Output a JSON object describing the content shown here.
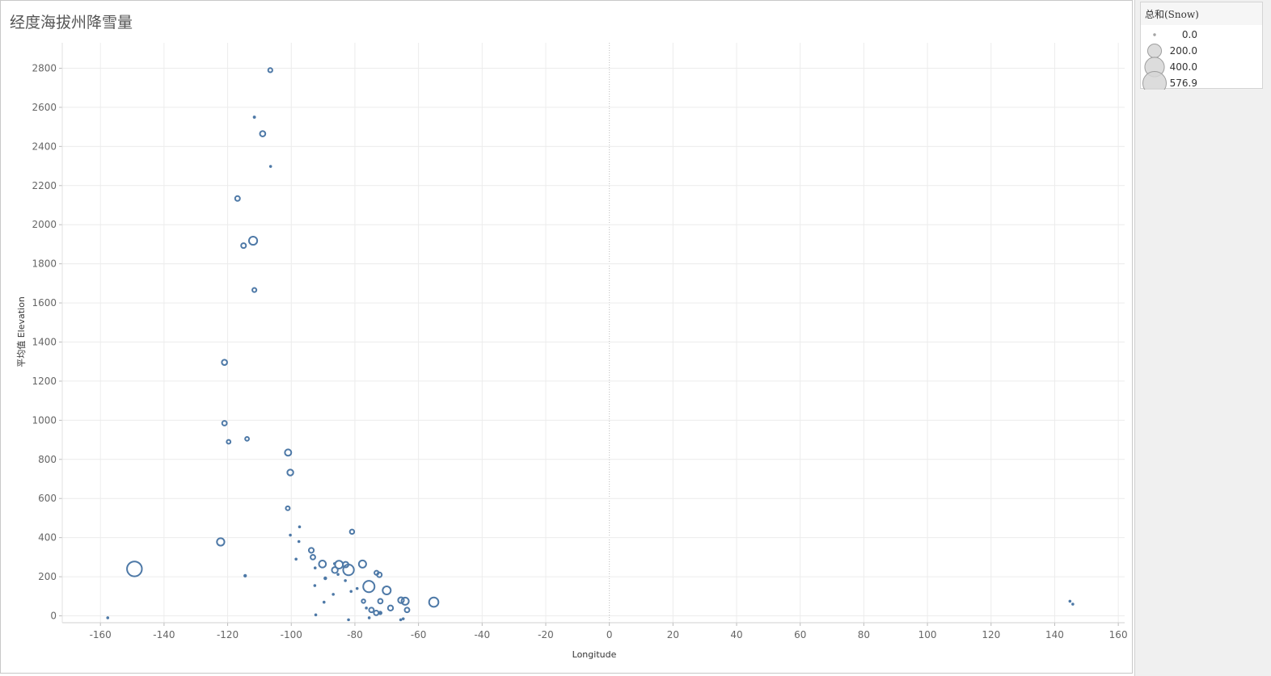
{
  "title": "经度海拔州降雪量",
  "colors": {
    "mark": "#4e79a7",
    "legend_mark": "#9e9e9e",
    "grid": "#ececec",
    "zero_line": "#bdbdbd"
  },
  "legend": {
    "title": "总和(Snow)",
    "items": [
      {
        "label": "0.0",
        "value": 0
      },
      {
        "label": "200.0",
        "value": 200
      },
      {
        "label": "400.0",
        "value": 400
      },
      {
        "label": "576.9",
        "value": 576.9
      }
    ]
  },
  "chart_data": {
    "type": "scatter",
    "xlabel": "Longitude",
    "ylabel": "平均值 Elevation",
    "xlim": [
      -172,
      162
    ],
    "ylim": [
      -35,
      2930
    ],
    "xticks": [
      -160,
      -140,
      -120,
      -100,
      -80,
      -60,
      -40,
      -20,
      0,
      20,
      40,
      60,
      80,
      100,
      120,
      140,
      160
    ],
    "yticks": [
      0,
      200,
      400,
      600,
      800,
      1000,
      1200,
      1400,
      1600,
      1800,
      2000,
      2200,
      2400,
      2600,
      2800
    ],
    "grid": true,
    "legend_position": "right",
    "size_field": "总和(Snow)",
    "size_max": 576.9,
    "points": [
      {
        "x": -106.6,
        "y": 2790,
        "size": 20
      },
      {
        "x": -111.6,
        "y": 2550,
        "size": 7
      },
      {
        "x": -109.0,
        "y": 2465,
        "size": 33
      },
      {
        "x": -106.5,
        "y": 2298,
        "size": 4
      },
      {
        "x": -116.9,
        "y": 2134,
        "size": 26
      },
      {
        "x": -112.0,
        "y": 1918,
        "size": 76
      },
      {
        "x": -115.0,
        "y": 1893,
        "size": 27
      },
      {
        "x": -111.6,
        "y": 1666,
        "size": 19
      },
      {
        "x": -121.0,
        "y": 1296,
        "size": 32
      },
      {
        "x": -121.0,
        "y": 985,
        "size": 25
      },
      {
        "x": -119.7,
        "y": 890,
        "size": 17
      },
      {
        "x": -113.9,
        "y": 905,
        "size": 17
      },
      {
        "x": -101.0,
        "y": 835,
        "size": 46
      },
      {
        "x": -100.3,
        "y": 733,
        "size": 40
      },
      {
        "x": -101.1,
        "y": 550,
        "size": 18
      },
      {
        "x": -122.2,
        "y": 378,
        "size": 63
      },
      {
        "x": -149.3,
        "y": 240,
        "size": 250
      },
      {
        "x": -157.7,
        "y": -10,
        "size": 1
      },
      {
        "x": -114.5,
        "y": 205,
        "size": 9
      },
      {
        "x": -97.4,
        "y": 455,
        "size": 5
      },
      {
        "x": -100.3,
        "y": 413,
        "size": 5
      },
      {
        "x": -97.6,
        "y": 380,
        "size": 3
      },
      {
        "x": -80.9,
        "y": 430,
        "size": 22
      },
      {
        "x": -93.7,
        "y": 335,
        "size": 28
      },
      {
        "x": -93.2,
        "y": 300,
        "size": 25
      },
      {
        "x": -98.5,
        "y": 290,
        "size": 6
      },
      {
        "x": -92.5,
        "y": 245,
        "size": 2
      },
      {
        "x": -90.2,
        "y": 265,
        "size": 55
      },
      {
        "x": -89.3,
        "y": 192,
        "size": 10
      },
      {
        "x": -86.3,
        "y": 234,
        "size": 40
      },
      {
        "x": -85.0,
        "y": 262,
        "size": 70
      },
      {
        "x": -82.9,
        "y": 262,
        "size": 35
      },
      {
        "x": -82.0,
        "y": 235,
        "size": 130
      },
      {
        "x": -83.0,
        "y": 180,
        "size": 1
      },
      {
        "x": -86.4,
        "y": 267,
        "size": 3
      },
      {
        "x": -85.3,
        "y": 212,
        "size": 3
      },
      {
        "x": -77.6,
        "y": 265,
        "size": 60
      },
      {
        "x": -79.3,
        "y": 140,
        "size": 4
      },
      {
        "x": -81.2,
        "y": 125,
        "size": 1
      },
      {
        "x": -92.6,
        "y": 155,
        "size": 4
      },
      {
        "x": -86.8,
        "y": 110,
        "size": 3
      },
      {
        "x": -89.7,
        "y": 70,
        "size": 1
      },
      {
        "x": -92.3,
        "y": 5,
        "size": 1
      },
      {
        "x": -82.0,
        "y": -20,
        "size": 1
      },
      {
        "x": -73.2,
        "y": 220,
        "size": 20
      },
      {
        "x": -72.3,
        "y": 210,
        "size": 26
      },
      {
        "x": -75.6,
        "y": 150,
        "size": 145
      },
      {
        "x": -70.0,
        "y": 130,
        "size": 74
      },
      {
        "x": -77.3,
        "y": 75,
        "size": 15
      },
      {
        "x": -76.4,
        "y": 40,
        "size": 3
      },
      {
        "x": -72.0,
        "y": 75,
        "size": 24
      },
      {
        "x": -65.5,
        "y": 80,
        "size": 38
      },
      {
        "x": -64.2,
        "y": 75,
        "size": 60
      },
      {
        "x": -74.8,
        "y": 30,
        "size": 25
      },
      {
        "x": -73.3,
        "y": 15,
        "size": 25
      },
      {
        "x": -72.0,
        "y": 15,
        "size": 14
      },
      {
        "x": -68.8,
        "y": 40,
        "size": 30
      },
      {
        "x": -63.6,
        "y": 30,
        "size": 25
      },
      {
        "x": -75.5,
        "y": -10,
        "size": 2
      },
      {
        "x": -65.6,
        "y": -20,
        "size": 1
      },
      {
        "x": -64.8,
        "y": -15,
        "size": 1
      },
      {
        "x": -55.2,
        "y": 70,
        "size": 100
      },
      {
        "x": 144.8,
        "y": 75,
        "size": 1
      },
      {
        "x": 145.7,
        "y": 60,
        "size": 1
      }
    ]
  }
}
